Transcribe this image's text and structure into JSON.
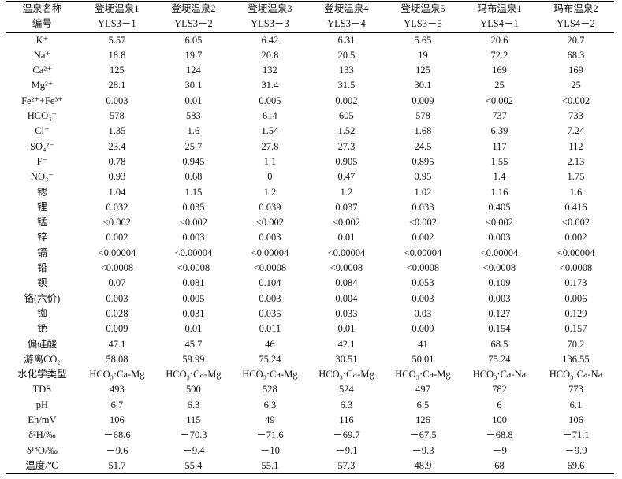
{
  "table": {
    "header": [
      "温泉名称",
      "登埂温泉1",
      "登埂温泉2",
      "登埂温泉3",
      "登埂温泉4",
      "登埂温泉5",
      "玛布温泉1",
      "玛布温泉2"
    ],
    "ids": [
      "编号",
      "YLS3－1",
      "YLS3－2",
      "YLS3－3",
      "YLS3－4",
      "YLS3－5",
      "YLS4－1",
      "YLS4－2"
    ],
    "rows": [
      {
        "label": "K⁺",
        "values": [
          "5.57",
          "6.05",
          "6.42",
          "6.31",
          "5.65",
          "20.6",
          "20.7"
        ]
      },
      {
        "label": "Na⁺",
        "values": [
          "18.8",
          "19.7",
          "20.8",
          "20.5",
          "19",
          "72.2",
          "68.3"
        ]
      },
      {
        "label": "Ca²⁺",
        "values": [
          "125",
          "124",
          "132",
          "133",
          "125",
          "169",
          "169"
        ]
      },
      {
        "label": "Mg²⁺",
        "values": [
          "28.1",
          "30.1",
          "31.4",
          "31.5",
          "30.1",
          "25",
          "25"
        ]
      },
      {
        "label": "Fe²⁺+Fe³⁺",
        "values": [
          "0.003",
          "0.01",
          "0.005",
          "0.002",
          "0.009",
          "<0.002",
          "<0.002"
        ]
      },
      {
        "label": "HCO₃⁻",
        "values": [
          "578",
          "583",
          "614",
          "605",
          "578",
          "737",
          "733"
        ]
      },
      {
        "label": "Cl⁻",
        "values": [
          "1.35",
          "1.6",
          "1.54",
          "1.52",
          "1.68",
          "6.39",
          "7.24"
        ]
      },
      {
        "label": "SO₄²⁻",
        "values": [
          "23.4",
          "25.7",
          "27.8",
          "27.3",
          "24.5",
          "117",
          "112"
        ]
      },
      {
        "label": "F⁻",
        "values": [
          "0.78",
          "0.945",
          "1.1",
          "0.905",
          "0.895",
          "1.55",
          "2.13"
        ]
      },
      {
        "label": "NO₃⁻",
        "values": [
          "0.93",
          "0.68",
          "0",
          "0.47",
          "0.95",
          "1.4",
          "1.75"
        ]
      },
      {
        "label": "锶",
        "values": [
          "1.04",
          "1.15",
          "1.2",
          "1.2",
          "1.02",
          "1.16",
          "1.6"
        ]
      },
      {
        "label": "锂",
        "values": [
          "0.032",
          "0.035",
          "0.039",
          "0.037",
          "0.033",
          "0.405",
          "0.416"
        ]
      },
      {
        "label": "锰",
        "values": [
          "<0.002",
          "<0.002",
          "<0.002",
          "<0.002",
          "<0.002",
          "<0.002",
          "<0.002"
        ]
      },
      {
        "label": "锌",
        "values": [
          "0.002",
          "0.003",
          "0.003",
          "0.01",
          "0.002",
          "0.003",
          "0.002"
        ]
      },
      {
        "label": "镉",
        "values": [
          "<0.00004",
          "<0.00004",
          "<0.00004",
          "<0.00004",
          "<0.00004",
          "<0.00004",
          "<0.00004"
        ]
      },
      {
        "label": "铅",
        "values": [
          "<0.0008",
          "<0.0008",
          "<0.0008",
          "<0.0008",
          "<0.0008",
          "<0.0008",
          "<0.0008"
        ]
      },
      {
        "label": "钡",
        "values": [
          "0.07",
          "0.081",
          "0.104",
          "0.084",
          "0.053",
          "0.109",
          "0.173"
        ]
      },
      {
        "label": "铬(六价)",
        "values": [
          "0.003",
          "0.005",
          "0.003",
          "0.004",
          "0.003",
          "0.003",
          "0.006"
        ]
      },
      {
        "label": "铷",
        "values": [
          "0.028",
          "0.031",
          "0.035",
          "0.033",
          "0.03",
          "0.127",
          "0.129"
        ]
      },
      {
        "label": "铯",
        "values": [
          "0.009",
          "0.01",
          "0.011",
          "0.01",
          "0.009",
          "0.154",
          "0.157"
        ]
      },
      {
        "label": "偏硅酸",
        "values": [
          "47.1",
          "45.7",
          "46",
          "42.1",
          "41",
          "68.5",
          "70.2"
        ]
      },
      {
        "label": "游离CO₂",
        "values": [
          "58.08",
          "59.99",
          "75.24",
          "30.51",
          "50.01",
          "75.24",
          "136.55"
        ]
      },
      {
        "label": "水化学类型",
        "values": [
          "HCO₃·Ca-Mg",
          "HCO₃·Ca-Mg",
          "HCO₃·Ca-Mg",
          "HCO₃·Ca-Mg",
          "HCO₃·Ca-Mg",
          "HCO₃·Ca-Na",
          "HCO₃·Ca-Na"
        ]
      },
      {
        "label": "TDS",
        "values": [
          "493",
          "500",
          "528",
          "524",
          "497",
          "782",
          "773"
        ]
      },
      {
        "label": "pH",
        "values": [
          "6.7",
          "6.3",
          "6.3",
          "6.3",
          "6.5",
          "6",
          "6.1"
        ]
      },
      {
        "label": "Eh/mV",
        "values": [
          "106",
          "115",
          "49",
          "116",
          "126",
          "100",
          "106"
        ]
      },
      {
        "label": "δ²H/‰",
        "values": [
          "－68.6",
          "－70.3",
          "－71.6",
          "－69.7",
          "－67.5",
          "－68.8",
          "－71.1"
        ]
      },
      {
        "label": "δ¹⁸O/‰",
        "values": [
          "－9.6",
          "－9.4",
          "－10",
          "－9.1",
          "－9.3",
          "－9",
          "－9.9"
        ]
      },
      {
        "label": "温度/℃",
        "values": [
          "51.7",
          "55.4",
          "55.1",
          "57.3",
          "48.9",
          "68",
          "69.6"
        ]
      }
    ]
  }
}
